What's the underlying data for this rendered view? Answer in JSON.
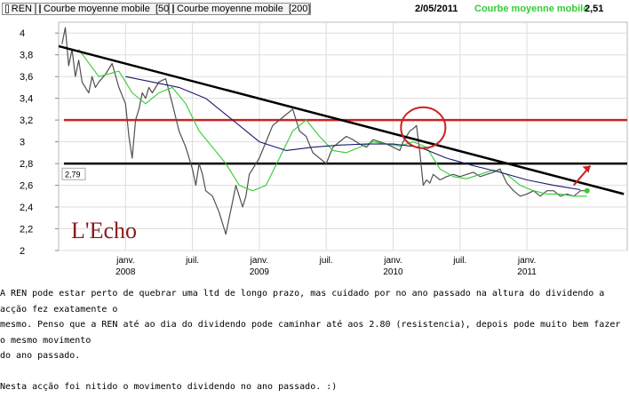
{
  "legend": [
    {
      "label": "REN",
      "color": "#ffffff"
    },
    {
      "label": "Courbe moyenne mobile  [50]",
      "color": "#33cc33"
    },
    {
      "label": "Courbe moyenne mobile  [200]",
      "color": "#1a1a6e"
    }
  ],
  "info": {
    "date": "2/05/2011",
    "label": "Courbe moyenne mobile",
    "value": "2,51"
  },
  "chart_data": {
    "type": "line",
    "title": "",
    "xlabel": "",
    "ylabel": "",
    "ylim": [
      2.0,
      4.1
    ],
    "xlim": [
      0,
      8.5
    ],
    "y_ticks": [
      "4",
      "3,8",
      "3,6",
      "3,4",
      "3,2",
      "3",
      "2,8",
      "2,6",
      "2,4",
      "2,2",
      "2"
    ],
    "y_tick_values": [
      4,
      3.8,
      3.6,
      3.4,
      3.2,
      3,
      2.8,
      2.6,
      2.4,
      2.2,
      2
    ],
    "x_ticks": [
      {
        "label": "janv.",
        "sub": "2008",
        "pos": 1
      },
      {
        "label": "juil.",
        "sub": "",
        "pos": 2
      },
      {
        "label": "janv.",
        "sub": "2009",
        "pos": 3
      },
      {
        "label": "juil.",
        "sub": "",
        "pos": 4
      },
      {
        "label": "janv.",
        "sub": "2010",
        "pos": 5
      },
      {
        "label": "juil.",
        "sub": "",
        "pos": 6
      },
      {
        "label": "janv.",
        "sub": "2011",
        "pos": 7
      }
    ],
    "grid": true,
    "price_label": "2,79",
    "watermark": "L'Echo",
    "series": [
      {
        "name": "REN",
        "color": "#505050",
        "x": [
          0.05,
          0.1,
          0.15,
          0.2,
          0.25,
          0.3,
          0.35,
          0.4,
          0.45,
          0.5,
          0.55,
          0.6,
          0.7,
          0.8,
          0.9,
          1.0,
          1.05,
          1.1,
          1.15,
          1.2,
          1.25,
          1.3,
          1.35,
          1.4,
          1.5,
          1.6,
          1.7,
          1.8,
          1.9,
          2.0,
          2.05,
          2.1,
          2.15,
          2.2,
          2.3,
          2.4,
          2.5,
          2.6,
          2.65,
          2.7,
          2.75,
          2.8,
          2.85,
          2.9,
          3.0,
          3.1,
          3.2,
          3.3,
          3.4,
          3.5,
          3.6,
          3.7,
          3.8,
          3.9,
          4.0,
          4.1,
          4.2,
          4.3,
          4.4,
          4.5,
          4.6,
          4.7,
          4.8,
          4.9,
          5.0,
          5.1,
          5.15,
          5.2,
          5.25,
          5.3,
          5.35,
          5.4,
          5.45,
          5.5,
          5.55,
          5.6,
          5.7,
          5.8,
          5.9,
          6.0,
          6.1,
          6.2,
          6.3,
          6.4,
          6.5,
          6.6,
          6.7,
          6.8,
          6.9,
          7.0,
          7.1,
          7.2,
          7.3,
          7.4,
          7.5,
          7.6,
          7.7,
          7.8,
          7.9
        ],
        "values": [
          3.9,
          4.05,
          3.7,
          3.85,
          3.6,
          3.75,
          3.55,
          3.5,
          3.45,
          3.6,
          3.5,
          3.55,
          3.62,
          3.72,
          3.5,
          3.35,
          3.05,
          2.85,
          3.2,
          3.3,
          3.45,
          3.4,
          3.5,
          3.45,
          3.55,
          3.58,
          3.35,
          3.1,
          2.95,
          2.75,
          2.6,
          2.8,
          2.7,
          2.55,
          2.5,
          2.35,
          2.15,
          2.45,
          2.6,
          2.5,
          2.4,
          2.5,
          2.7,
          2.75,
          2.85,
          3.0,
          3.15,
          3.2,
          3.25,
          3.3,
          3.1,
          3.05,
          2.9,
          2.85,
          2.8,
          2.95,
          3.0,
          3.05,
          3.02,
          2.98,
          2.95,
          3.02,
          3.0,
          2.98,
          2.95,
          2.92,
          3.0,
          3.05,
          3.1,
          3.12,
          3.15,
          2.9,
          2.6,
          2.65,
          2.62,
          2.7,
          2.65,
          2.68,
          2.7,
          2.68,
          2.7,
          2.72,
          2.68,
          2.7,
          2.72,
          2.75,
          2.62,
          2.55,
          2.5,
          2.52,
          2.55,
          2.5,
          2.55,
          2.55,
          2.5,
          2.52,
          2.5,
          2.55,
          2.55
        ]
      },
      {
        "name": "Courbe moyenne mobile  [50]",
        "color": "#33cc33",
        "x": [
          0.3,
          0.6,
          0.9,
          1.1,
          1.3,
          1.5,
          1.7,
          1.9,
          2.1,
          2.3,
          2.5,
          2.7,
          2.9,
          3.1,
          3.3,
          3.5,
          3.7,
          3.9,
          4.1,
          4.3,
          4.5,
          4.7,
          4.9,
          5.1,
          5.3,
          5.5,
          5.7,
          5.9,
          6.1,
          6.3,
          6.5,
          6.7,
          6.9,
          7.1,
          7.3,
          7.5,
          7.7,
          7.9
        ],
        "values": [
          3.85,
          3.6,
          3.65,
          3.45,
          3.35,
          3.45,
          3.5,
          3.35,
          3.1,
          2.95,
          2.8,
          2.6,
          2.55,
          2.6,
          2.85,
          3.1,
          3.2,
          3.05,
          2.92,
          2.9,
          2.95,
          3.0,
          2.98,
          2.96,
          3.0,
          2.95,
          2.75,
          2.68,
          2.66,
          2.7,
          2.74,
          2.7,
          2.6,
          2.55,
          2.52,
          2.52,
          2.5,
          2.5
        ]
      },
      {
        "name": "Courbe moyenne mobile  [200]",
        "color": "#1a1a6e",
        "x": [
          1.0,
          1.4,
          1.8,
          2.2,
          2.6,
          3.0,
          3.4,
          3.8,
          4.2,
          4.6,
          5.0,
          5.4,
          5.8,
          6.2,
          6.6,
          7.0,
          7.4,
          7.8
        ],
        "values": [
          3.6,
          3.55,
          3.5,
          3.4,
          3.2,
          3.0,
          2.92,
          2.95,
          2.97,
          2.98,
          2.98,
          2.95,
          2.85,
          2.78,
          2.72,
          2.65,
          2.6,
          2.56
        ]
      }
    ],
    "overlays": {
      "trend_line": {
        "from": [
          0,
          3.88
        ],
        "to": [
          8.45,
          2.52
        ],
        "color": "#000000"
      },
      "resistance_red": {
        "y": 3.2,
        "color": "#cc2222"
      },
      "support_black": {
        "y": 2.8,
        "color": "#000000"
      },
      "circle": {
        "x": 5.45,
        "y": 3.13,
        "color": "#cc2222"
      },
      "arrow": {
        "from": [
          7.7,
          2.6
        ],
        "to": [
          7.95,
          2.78
        ],
        "color": "#cc2222"
      }
    }
  },
  "notes": {
    "line1": "A REN pode estar perto de quebrar uma ltd de longo prazo, mas cuidado por no ano passado na altura do dividendo a acção fez exatamente o",
    "line2": "mesmo. Penso que a REN até ao dia do dividendo pode caminhar até aos 2.80 (resistencia), depois pode muito bem fazer o mesmo movimento",
    "line3": "do ano passado.",
    "line4": "Nesta acção foi nitido o movimento dividendo no ano passado. :)"
  }
}
